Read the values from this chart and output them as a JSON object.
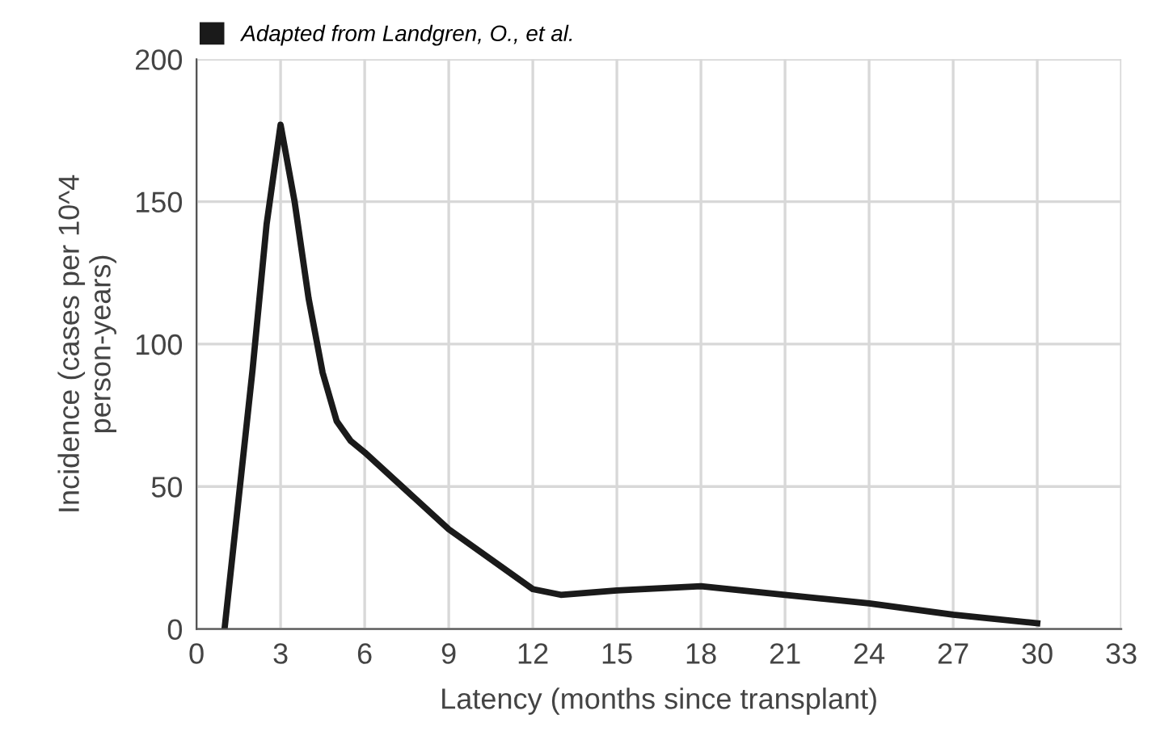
{
  "chart_data": {
    "type": "line",
    "xlabel": "Latency (months since transplant)",
    "ylabel": "Incidence (cases per 10^4\nperson-years)",
    "xlim": [
      0,
      33
    ],
    "xticks": [
      0,
      3,
      6,
      9,
      12,
      15,
      18,
      21,
      24,
      27,
      30,
      33
    ],
    "ylim": [
      0,
      200
    ],
    "yticks": [
      0,
      50,
      100,
      150,
      200
    ],
    "grid": true,
    "legend": "top left",
    "series": [
      {
        "name": "Adapted from Landgren, O., et al.",
        "color": "#1a1a1a",
        "x": [
          1,
          2,
          2.5,
          3,
          3.5,
          4,
          4.5,
          5,
          5.5,
          6,
          9,
          12,
          13,
          15,
          18,
          21,
          24,
          27,
          30
        ],
        "values": [
          0,
          91,
          142,
          177,
          150,
          116,
          90,
          73,
          66,
          62,
          35,
          14,
          12,
          13.5,
          15,
          12,
          9,
          5,
          2
        ]
      }
    ]
  }
}
